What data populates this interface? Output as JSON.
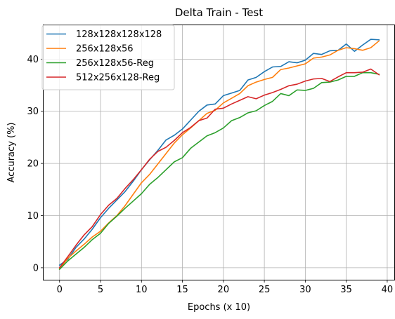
{
  "chart_data": {
    "type": "line",
    "title": "Delta Train - Test",
    "xlabel": "Epochs (x 10)",
    "ylabel": "Accuracy (%)",
    "xlim": [
      -1.95,
      40.95
    ],
    "ylim": [
      -2.3,
      46.5
    ],
    "xticks": [
      0,
      5,
      10,
      15,
      20,
      25,
      30,
      35,
      40
    ],
    "yticks": [
      0,
      10,
      20,
      30,
      40
    ],
    "grid": true,
    "legend_position": "top-left",
    "x": [
      0,
      1,
      2,
      3,
      4,
      5,
      6,
      7,
      8,
      9,
      10,
      11,
      12,
      13,
      14,
      15,
      16,
      17,
      18,
      19,
      20,
      21,
      22,
      23,
      24,
      25,
      26,
      27,
      28,
      29,
      30,
      31,
      32,
      33,
      34,
      35,
      36,
      37,
      38,
      39
    ],
    "series": [
      {
        "name": "128x128x128x128",
        "color": "#1f77b4",
        "values": [
          0.5,
          1.6,
          3.9,
          5.5,
          7.4,
          9.6,
          11.4,
          13.0,
          14.6,
          16.6,
          18.8,
          20.7,
          22.5,
          24.5,
          25.4,
          26.6,
          28.3,
          30.0,
          31.2,
          31.4,
          33.0,
          33.5,
          34.0,
          36.0,
          36.5,
          37.6,
          38.5,
          38.6,
          39.5,
          39.3,
          39.8,
          41.1,
          40.9,
          41.6,
          41.7,
          42.9,
          41.5,
          42.7,
          43.8,
          43.7
        ]
      },
      {
        "name": "256x128x56",
        "color": "#ff7f0e",
        "values": [
          -0.2,
          1.8,
          3.2,
          4.5,
          5.9,
          7.0,
          8.6,
          10.0,
          11.9,
          14.1,
          16.3,
          17.9,
          19.9,
          21.9,
          23.9,
          25.5,
          26.8,
          28.2,
          29.6,
          30.2,
          31.6,
          32.5,
          33.4,
          34.9,
          35.6,
          36.1,
          36.5,
          38.0,
          38.3,
          38.7,
          39.1,
          40.2,
          40.4,
          40.8,
          41.7,
          42.2,
          42.0,
          41.7,
          42.2,
          43.5
        ]
      },
      {
        "name": "256x128x56-Reg",
        "color": "#2ca02c",
        "values": [
          -0.3,
          1.3,
          2.6,
          3.9,
          5.4,
          6.6,
          8.5,
          9.9,
          11.4,
          12.8,
          14.2,
          16.0,
          17.3,
          18.8,
          20.3,
          21.1,
          22.9,
          24.1,
          25.3,
          25.9,
          26.8,
          28.2,
          28.8,
          29.7,
          30.1,
          31.1,
          31.9,
          33.4,
          33.0,
          34.1,
          34.0,
          34.4,
          35.5,
          35.6,
          36.0,
          36.7,
          36.7,
          37.4,
          37.4,
          37.1
        ]
      },
      {
        "name": "512x256x128-Reg",
        "color": "#d62728",
        "values": [
          0.0,
          2.1,
          4.3,
          6.3,
          7.9,
          10.2,
          12.0,
          13.3,
          15.2,
          16.9,
          18.8,
          20.8,
          22.3,
          23.1,
          24.4,
          25.9,
          26.9,
          28.2,
          28.7,
          30.4,
          30.6,
          31.4,
          32.1,
          32.8,
          32.4,
          33.1,
          33.6,
          34.2,
          34.9,
          35.2,
          35.8,
          36.2,
          36.3,
          35.7,
          36.6,
          37.4,
          37.4,
          37.5,
          38.1,
          37.0
        ]
      }
    ]
  }
}
